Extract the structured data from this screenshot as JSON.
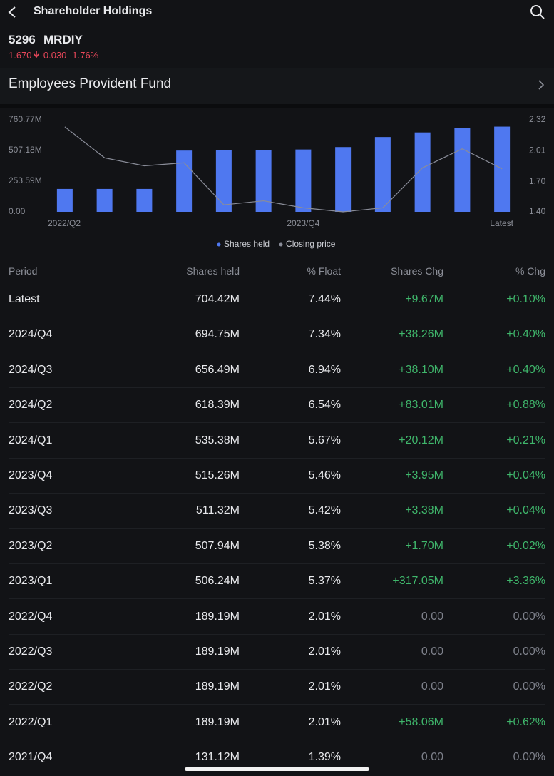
{
  "header": {
    "title": "Shareholder Holdings",
    "code": "5296",
    "name": "MRDIY",
    "price": "1.670",
    "change": "-0.030",
    "change_percent": "-1.76%",
    "holder": "Employees Provident Fund"
  },
  "chart_data": {
    "type": "bar",
    "categories": [
      "2022/Q2",
      null,
      null,
      null,
      null,
      null,
      "2023/Q4",
      null,
      null,
      null,
      null,
      "Latest"
    ],
    "series": [
      {
        "name": "Shares held",
        "color": "#4f78f0",
        "values": [
          189.19,
          189.19,
          189.19,
          506.24,
          507.94,
          511.32,
          515.26,
          535.38,
          618.39,
          656.49,
          694.75,
          704.42
        ]
      },
      {
        "name": "Closing price",
        "color": "#8a8d99",
        "type": "line",
        "axis": "y2",
        "values": [
          2.25,
          1.94,
          1.86,
          1.89,
          1.47,
          1.51,
          1.44,
          1.4,
          1.44,
          1.84,
          2.03,
          1.83
        ]
      }
    ],
    "ylim": [
      0,
      760.77
    ],
    "yticks": [
      {
        "value": 0,
        "label": "0.00"
      },
      {
        "value": 253.59,
        "label": "253.59M"
      },
      {
        "value": 507.18,
        "label": "507.18M"
      },
      {
        "value": 760.77,
        "label": "760.77M"
      }
    ],
    "y2lim": [
      1.4,
      2.32
    ],
    "y2ticks": [
      {
        "value": 1.4,
        "label": "1.40"
      },
      {
        "value": 1.7,
        "label": "1.70"
      },
      {
        "value": 2.01,
        "label": "2.01"
      },
      {
        "value": 2.32,
        "label": "2.32"
      }
    ],
    "legend": "bottom"
  },
  "table": {
    "columns": [
      "Period",
      "Shares held",
      "% Float",
      "Shares Chg",
      "% Chg"
    ],
    "rows": [
      [
        "Latest",
        "704.42M",
        "7.44%",
        "+9.67M",
        "+0.10%"
      ],
      [
        "2024/Q4",
        "694.75M",
        "7.34%",
        "+38.26M",
        "+0.40%"
      ],
      [
        "2024/Q3",
        "656.49M",
        "6.94%",
        "+38.10M",
        "+0.40%"
      ],
      [
        "2024/Q2",
        "618.39M",
        "6.54%",
        "+83.01M",
        "+0.88%"
      ],
      [
        "2024/Q1",
        "535.38M",
        "5.67%",
        "+20.12M",
        "+0.21%"
      ],
      [
        "2023/Q4",
        "515.26M",
        "5.46%",
        "+3.95M",
        "+0.04%"
      ],
      [
        "2023/Q3",
        "511.32M",
        "5.42%",
        "+3.38M",
        "+0.04%"
      ],
      [
        "2023/Q2",
        "507.94M",
        "5.38%",
        "+1.70M",
        "+0.02%"
      ],
      [
        "2023/Q1",
        "506.24M",
        "5.37%",
        "+317.05M",
        "+3.36%"
      ],
      [
        "2022/Q4",
        "189.19M",
        "2.01%",
        "0.00",
        "0.00%"
      ],
      [
        "2022/Q3",
        "189.19M",
        "2.01%",
        "0.00",
        "0.00%"
      ],
      [
        "2022/Q2",
        "189.19M",
        "2.01%",
        "0.00",
        "0.00%"
      ],
      [
        "2022/Q1",
        "189.19M",
        "2.01%",
        "+58.06M",
        "+0.62%"
      ],
      [
        "2021/Q4",
        "131.12M",
        "1.39%",
        "0.00",
        "0.00%"
      ]
    ]
  }
}
